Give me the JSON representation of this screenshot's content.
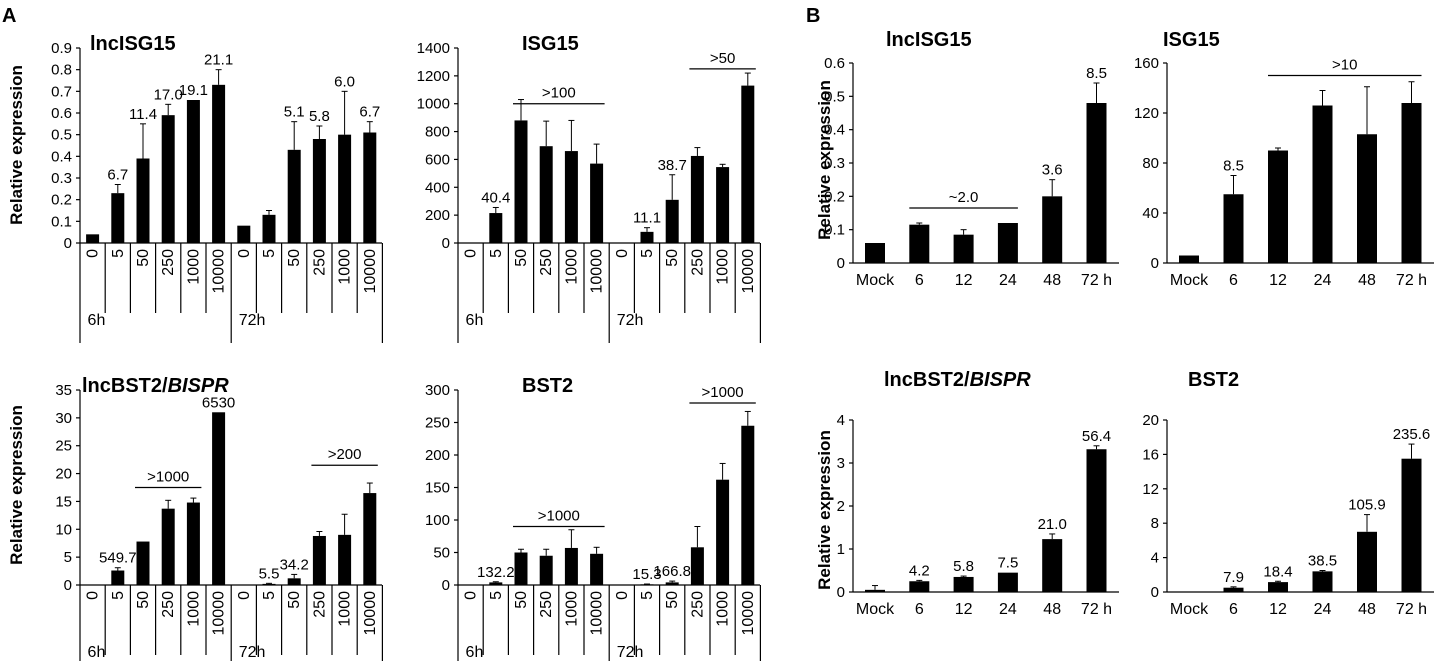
{
  "panel_labels": [
    "A",
    "B"
  ],
  "chart_data": [
    {
      "type": "bar",
      "panel": "A",
      "title": "lncISG15",
      "ylabel": "Relative expression",
      "ylim": [
        0,
        0.9
      ],
      "yticks": [
        0,
        0.1,
        0.2,
        0.3,
        0.4,
        0.5,
        0.6,
        0.7,
        0.8,
        0.9
      ],
      "ytick_labels": [
        "0",
        "0.1",
        "0.2",
        "0.3",
        "0.4",
        "0.5",
        "0.6",
        "0.7",
        "0.8",
        "0.9"
      ],
      "categories": [
        "0",
        "5",
        "50",
        "250",
        "1000",
        "10000",
        "0",
        "5",
        "50",
        "250",
        "1000",
        "10000"
      ],
      "groups": [
        "6h",
        "72h"
      ],
      "values": [
        0.04,
        0.23,
        0.39,
        0.59,
        0.66,
        0.73,
        0.08,
        0.13,
        0.43,
        0.48,
        0.5,
        0.51
      ],
      "errors": [
        0,
        0.04,
        0.16,
        0.05,
        0,
        0.07,
        0,
        0.02,
        0.13,
        0.06,
        0.2,
        0.05
      ],
      "labels": [
        "",
        "6.7",
        "11.4",
        "17.0",
        "19.1",
        "21.1",
        "",
        "",
        "5.1",
        "5.8",
        "6.0",
        "6.7"
      ],
      "brackets": []
    },
    {
      "type": "bar",
      "panel": "A",
      "title": "ISG15",
      "ylabel": "",
      "ylim": [
        0,
        1400
      ],
      "yticks": [
        0,
        200,
        400,
        600,
        800,
        1000,
        1200,
        1400
      ],
      "ytick_labels": [
        "0",
        "200",
        "400",
        "600",
        "800",
        "1000",
        "1200",
        "1400"
      ],
      "categories": [
        "0",
        "5",
        "50",
        "250",
        "1000",
        "10000",
        "0",
        "5",
        "50",
        "250",
        "1000",
        "10000"
      ],
      "groups": [
        "6h",
        "72h"
      ],
      "values": [
        0,
        215,
        880,
        695,
        660,
        570,
        0,
        80,
        310,
        625,
        545,
        1130
      ],
      "errors": [
        0,
        40,
        150,
        180,
        220,
        140,
        0,
        30,
        180,
        60,
        20,
        90
      ],
      "labels": [
        "",
        "40.4",
        "",
        "",
        "",
        "",
        "",
        "11.1",
        "38.7",
        "",
        "",
        ""
      ],
      "brackets": [
        {
          "from": 2,
          "to": 5,
          "y": 1000,
          "label": ">100"
        },
        {
          "from": 9,
          "to": 11,
          "y": 1250,
          "label": ">50"
        }
      ]
    },
    {
      "type": "bar",
      "panel": "A",
      "title": "lncBST2/BISPR",
      "title_italic_part": "BISPR",
      "ylabel": "Relative expression",
      "ylim": [
        0,
        35
      ],
      "yticks": [
        0,
        5,
        10,
        15,
        20,
        25,
        30,
        35
      ],
      "ytick_labels": [
        "0",
        "5",
        "10",
        "15",
        "20",
        "25",
        "30",
        "35"
      ],
      "categories": [
        "0",
        "5",
        "50",
        "250",
        "1000",
        "10000",
        "0",
        "5",
        "50",
        "250",
        "1000",
        "10000"
      ],
      "groups": [
        "6h",
        "72h"
      ],
      "values": [
        0,
        2.6,
        7.8,
        13.7,
        14.8,
        31,
        0,
        0.2,
        1.2,
        8.8,
        9,
        16.5
      ],
      "errors": [
        0,
        0.5,
        0,
        1.5,
        0.8,
        0,
        0,
        0.1,
        0.7,
        0.8,
        3.7,
        1.8
      ],
      "labels": [
        "",
        "549.7",
        "",
        "",
        "",
        "6530",
        "",
        "5.5",
        "34.2",
        "",
        "",
        ""
      ],
      "brackets": [
        {
          "from": 2,
          "to": 4,
          "y": 17.5,
          "label": ">1000"
        },
        {
          "from": 9,
          "to": 11,
          "y": 21.5,
          "label": ">200"
        }
      ]
    },
    {
      "type": "bar",
      "panel": "A",
      "title": "BST2",
      "ylabel": "",
      "ylim": [
        0,
        300
      ],
      "yticks": [
        0,
        50,
        100,
        150,
        200,
        250,
        300
      ],
      "ytick_labels": [
        "0",
        "50",
        "100",
        "150",
        "200",
        "250",
        "300"
      ],
      "categories": [
        "0",
        "5",
        "50",
        "250",
        "1000",
        "10000",
        "0",
        "5",
        "50",
        "250",
        "1000",
        "10000"
      ],
      "groups": [
        "6h",
        "72h"
      ],
      "values": [
        0,
        4,
        50,
        45,
        57,
        48,
        0,
        1,
        4,
        58,
        162,
        245
      ],
      "errors": [
        0,
        1,
        5,
        10,
        28,
        10,
        0,
        0.5,
        2,
        32,
        25,
        22
      ],
      "labels": [
        "",
        "132.2",
        "",
        "",
        "",
        "",
        "",
        "15.3",
        "166.8",
        "",
        "",
        ""
      ],
      "brackets": [
        {
          "from": 2,
          "to": 5,
          "y": 90,
          "label": ">1000"
        },
        {
          "from": 9,
          "to": 11,
          "y": 280,
          "label": ">1000"
        }
      ]
    },
    {
      "type": "bar",
      "panel": "B",
      "title": "lncISG15",
      "ylabel": "Relative expression",
      "ylim": [
        0,
        0.6
      ],
      "yticks": [
        0,
        0.1,
        0.2,
        0.3,
        0.4,
        0.5,
        0.6
      ],
      "ytick_labels": [
        "0",
        "0.1",
        "0.2",
        "0.3",
        "0.4",
        "0.5",
        "0.6"
      ],
      "categories": [
        "Mock",
        "6",
        "12",
        "24",
        "48",
        "72 h"
      ],
      "values": [
        0.06,
        0.115,
        0.085,
        0.12,
        0.2,
        0.48
      ],
      "errors": [
        0,
        0.005,
        0.015,
        0,
        0.05,
        0.06
      ],
      "labels": [
        "",
        "",
        "",
        "",
        "3.6",
        "8.5"
      ],
      "brackets": [
        {
          "from": 1,
          "to": 3,
          "y": 0.165,
          "label": "~2.0"
        }
      ]
    },
    {
      "type": "bar",
      "panel": "B",
      "title": "ISG15",
      "ylabel": "",
      "ylim": [
        0,
        160
      ],
      "yticks": [
        0,
        40,
        80,
        120,
        160
      ],
      "ytick_labels": [
        "0",
        "40",
        "80",
        "120",
        "160"
      ],
      "categories": [
        "Mock",
        "6",
        "12",
        "24",
        "48",
        "72 h"
      ],
      "values": [
        6,
        55,
        90,
        126,
        103,
        128
      ],
      "errors": [
        0,
        15,
        2,
        12,
        38,
        17
      ],
      "labels": [
        "",
        "8.5",
        "",
        "",
        "",
        ""
      ],
      "brackets": [
        {
          "from": 2,
          "to": 5,
          "y": 150,
          "label": ">10"
        }
      ]
    },
    {
      "type": "bar",
      "panel": "B",
      "title": "lncBST2/BISPR",
      "title_italic_part": "BISPR",
      "ylabel": "Relative expression",
      "ylim": [
        0,
        4
      ],
      "yticks": [
        0,
        1,
        2,
        3,
        4
      ],
      "ytick_labels": [
        "0",
        "1",
        "2",
        "3",
        "4"
      ],
      "categories": [
        "Mock",
        "6",
        "12",
        "24",
        "48",
        "72 h"
      ],
      "values": [
        0.05,
        0.25,
        0.35,
        0.45,
        1.23,
        3.32
      ],
      "errors": [
        0.1,
        0.02,
        0.02,
        0,
        0.12,
        0.08
      ],
      "labels": [
        "",
        "4.2",
        "5.8",
        "7.5",
        "21.0",
        "56.4"
      ],
      "brackets": []
    },
    {
      "type": "bar",
      "panel": "B",
      "title": "BST2",
      "ylabel": "",
      "ylim": [
        0,
        20
      ],
      "yticks": [
        0,
        4,
        8,
        12,
        16,
        20
      ],
      "ytick_labels": [
        "0",
        "4",
        "8",
        "12",
        "16",
        "20"
      ],
      "categories": [
        "Mock",
        "6",
        "12",
        "24",
        "48",
        "72 h"
      ],
      "values": [
        0.05,
        0.5,
        1.15,
        2.4,
        7,
        15.5
      ],
      "errors": [
        0,
        0.1,
        0.1,
        0.1,
        2,
        1.7
      ],
      "labels": [
        "",
        "7.9",
        "18.4",
        "38.5",
        "105.9",
        "235.6"
      ],
      "brackets": []
    }
  ]
}
